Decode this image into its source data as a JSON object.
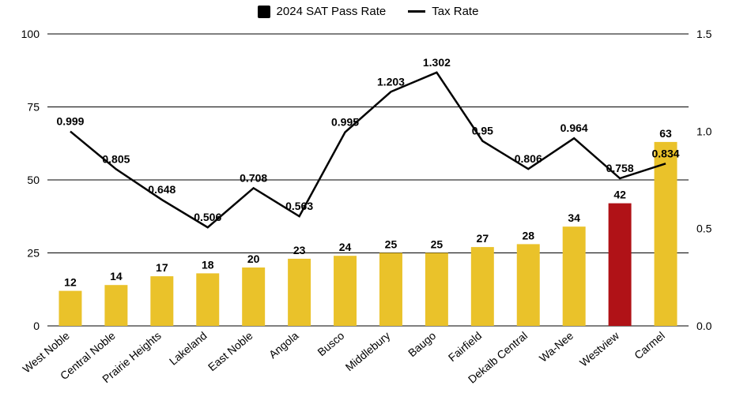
{
  "legend": {
    "series1": "2024 SAT Pass Rate",
    "series2": "Tax Rate"
  },
  "chart": {
    "type": "bar+line",
    "categories": [
      "West Noble",
      "Central Noble",
      "Prairie Heights",
      "Lakeland",
      "East Noble",
      "Angola",
      "Busco",
      "Middlebury",
      "Baugo",
      "Fairfield",
      "Dekalb Central",
      "Wa-Nee",
      "Westview",
      "Carmel"
    ],
    "bars": {
      "values": [
        12,
        14,
        17,
        18,
        20,
        23,
        24,
        25,
        25,
        27,
        28,
        34,
        42,
        63
      ],
      "colors": [
        "#eac22a",
        "#eac22a",
        "#eac22a",
        "#eac22a",
        "#eac22a",
        "#eac22a",
        "#eac22a",
        "#eac22a",
        "#eac22a",
        "#eac22a",
        "#eac22a",
        "#eac22a",
        "#b01217",
        "#eac22a"
      ],
      "label_fontsize": 14,
      "label_fontweight": "bold",
      "bar_width_frac": 0.5
    },
    "line": {
      "values": [
        0.999,
        0.805,
        0.648,
        0.506,
        0.708,
        0.563,
        0.995,
        1.203,
        1.302,
        0.95,
        0.806,
        0.964,
        0.758,
        0.834
      ],
      "color": "#000000",
      "width": 2.5,
      "label_fontsize": 14,
      "label_fontweight": "bold"
    },
    "y_left": {
      "lim": [
        0,
        100
      ],
      "ticks": [
        0,
        25,
        50,
        75,
        100
      ]
    },
    "y_right": {
      "lim": [
        0,
        1.5
      ],
      "ticks": [
        0.0,
        0.5,
        1.0,
        1.5
      ]
    },
    "grid": {
      "color": "#000000",
      "width": 1
    },
    "background_color": "#ffffff",
    "xlabel_rotate_deg": -40,
    "xlabel_fontsize": 14,
    "axis_fontsize": 14
  }
}
